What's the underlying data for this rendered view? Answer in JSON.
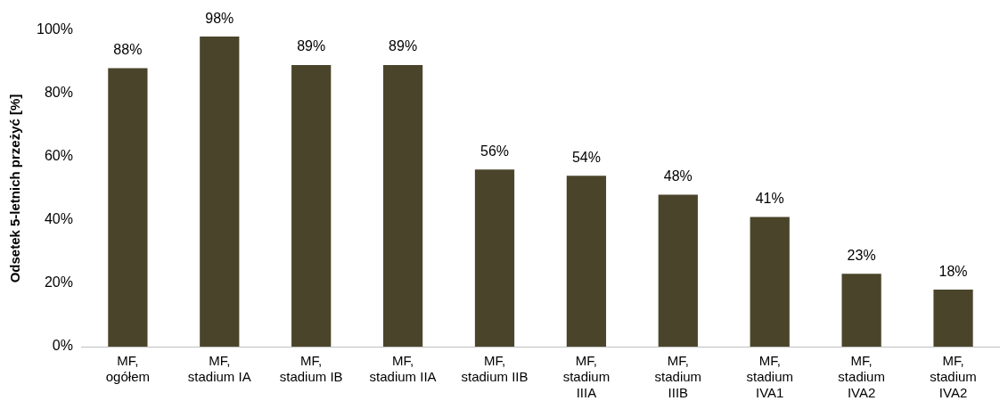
{
  "chart_data": {
    "type": "bar",
    "ylabel": "Odsetek 5-letnich przeżyć [%]",
    "categories": [
      "MF, ogółem",
      "MF, stadium IA",
      "MF, stadium IB",
      "MF, stadium IIA",
      "MF, stadium IIB",
      "MF, stadium IIIA",
      "MF, stadium IIIB",
      "MF, stadium IVA1",
      "MF, stadium IVA2",
      "MF, stadium IVA2"
    ],
    "values": [
      88,
      98,
      89,
      89,
      56,
      54,
      48,
      41,
      23,
      18
    ],
    "value_labels": [
      "88%",
      "98%",
      "89%",
      "89%",
      "56%",
      "54%",
      "48%",
      "41%",
      "23%",
      "18%"
    ],
    "color": "#4a452a",
    "ylim": [
      0,
      100
    ],
    "yticks": [
      {
        "value": 0,
        "label": "0%"
      },
      {
        "value": 20,
        "label": "20%"
      },
      {
        "value": 40,
        "label": "40%"
      },
      {
        "value": 60,
        "label": "60%"
      },
      {
        "value": 80,
        "label": "80%"
      },
      {
        "value": 100,
        "label": "100%"
      }
    ],
    "grid": false
  }
}
